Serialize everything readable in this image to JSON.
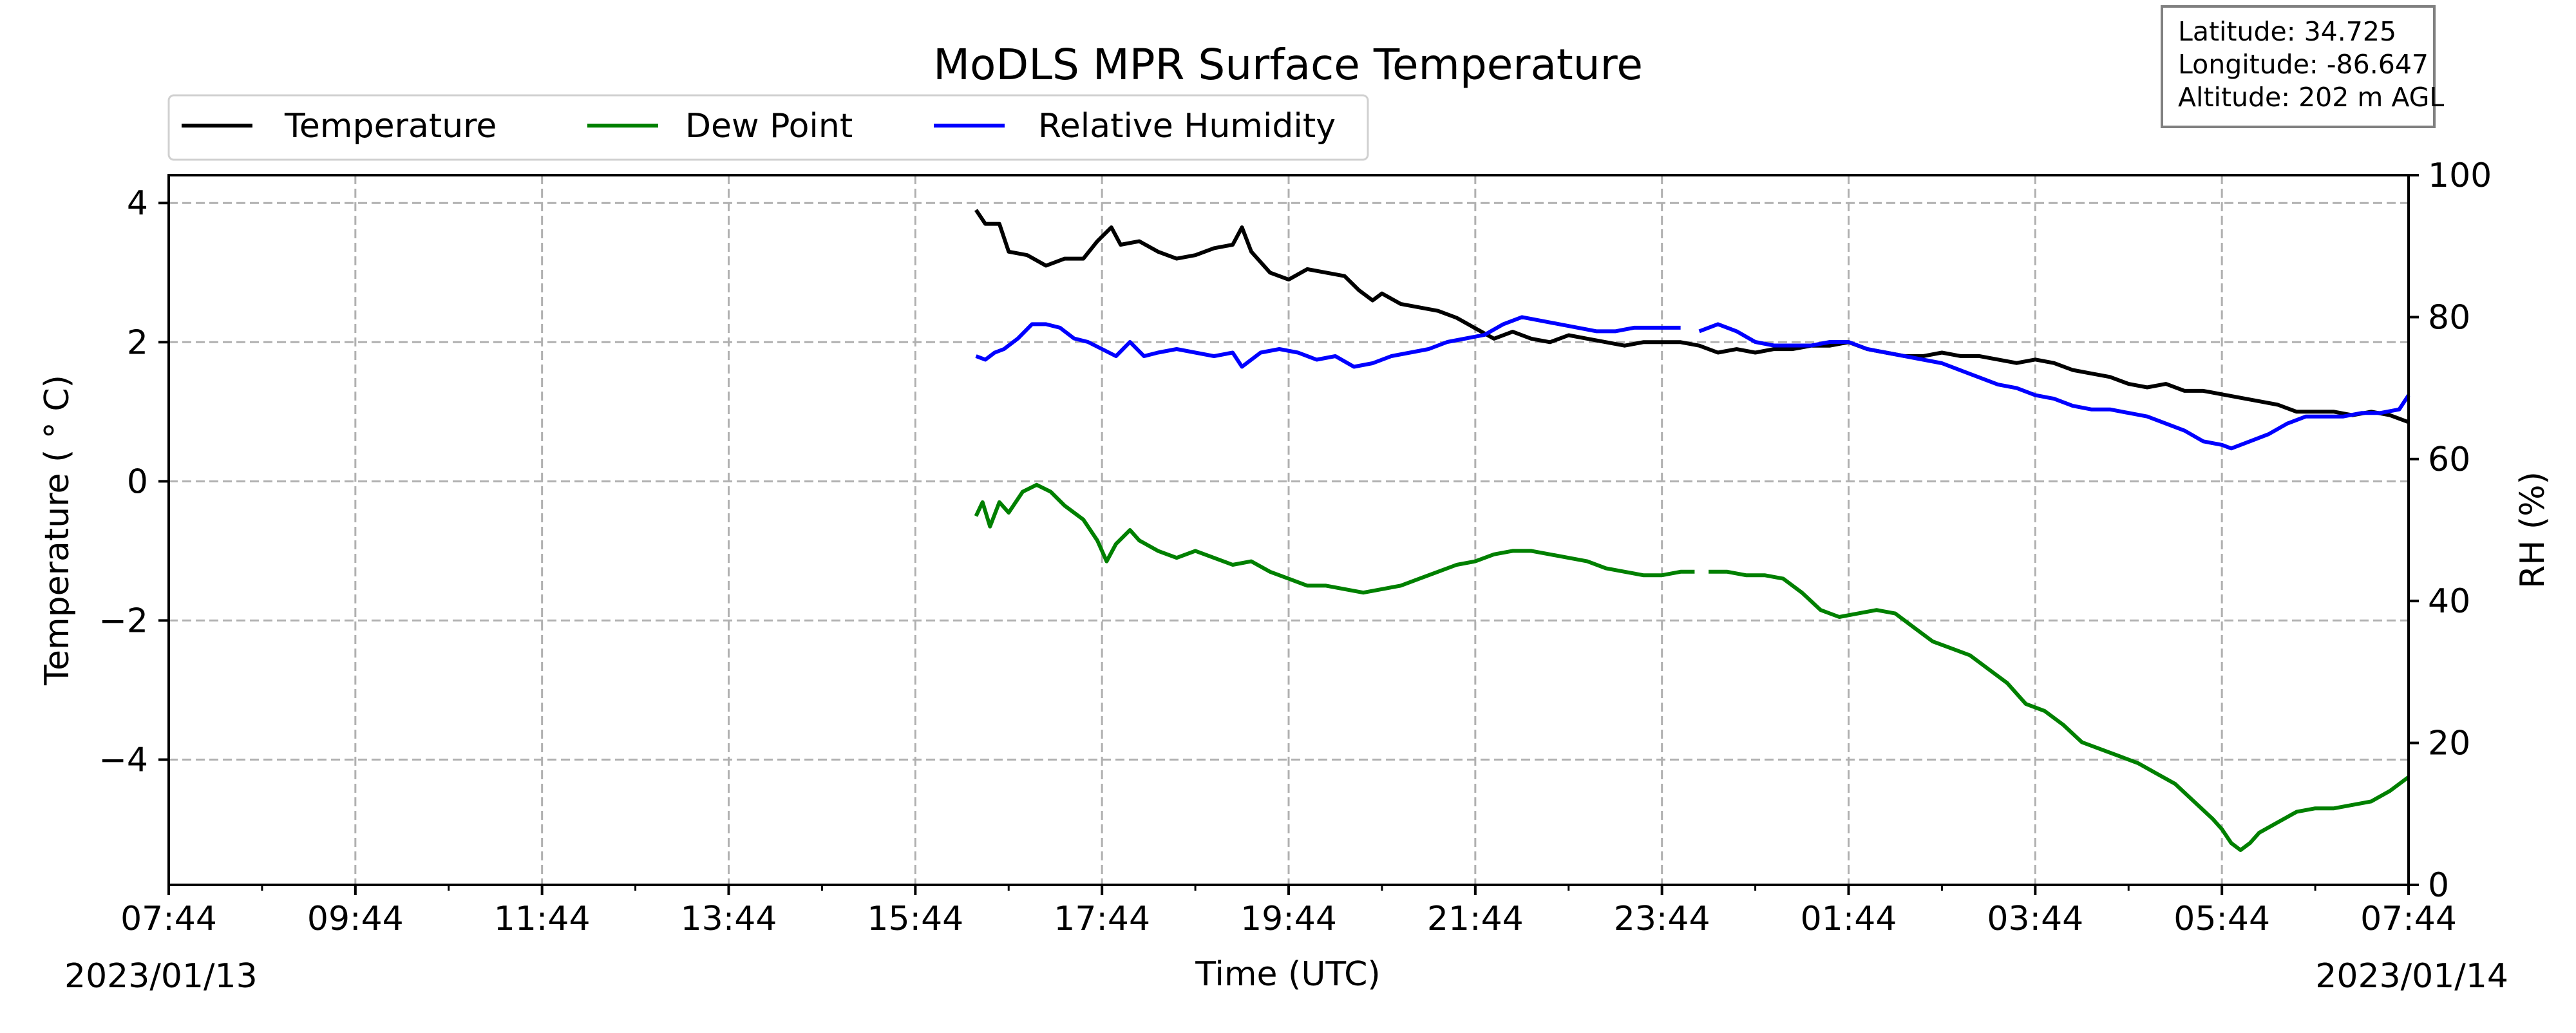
{
  "chart_data": {
    "type": "line",
    "title": "MoDLS MPR Surface Temperature",
    "xlabel": "Time (UTC)",
    "ylabel_left": "Temperature ($^\\circ$C)",
    "ylabel_left_display": "Temperature ( ° C)",
    "ylabel_right": "RH (%)",
    "x_ticks": [
      "07:44",
      "09:44",
      "11:44",
      "13:44",
      "15:44",
      "17:44",
      "19:44",
      "21:44",
      "23:44",
      "01:44",
      "03:44",
      "05:44",
      "07:44"
    ],
    "x_tick_hours": [
      0,
      2,
      4,
      6,
      8,
      10,
      12,
      14,
      16,
      18,
      20,
      22,
      24
    ],
    "date_start": "2023/01/13",
    "date_end": "2023/01/14",
    "xlim_hours_since_start": [
      0,
      24
    ],
    "ylim_left": [
      -5.8,
      4.4
    ],
    "yticks_left": [
      "4",
      "2",
      "0",
      "−2",
      "−4"
    ],
    "ytick_values_left": [
      4,
      2,
      0,
      -2,
      -4
    ],
    "ylim_right": [
      0,
      100
    ],
    "yticks_right": [
      "100",
      "80",
      "60",
      "40",
      "20",
      "0"
    ],
    "ytick_values_right": [
      100,
      80,
      60,
      40,
      20,
      0
    ],
    "grid": true,
    "legend_position": "top-left, above axes",
    "info_box": {
      "latitude": "Latitude: 34.725",
      "longitude": "Longitude: -86.647",
      "altitude": "Altitude: 202 m AGL"
    },
    "series": [
      {
        "name": "Temperature",
        "color": "#000000",
        "axis": "left",
        "points": [
          [
            8.65,
            3.9
          ],
          [
            8.75,
            3.7
          ],
          [
            8.9,
            3.7
          ],
          [
            9.0,
            3.3
          ],
          [
            9.2,
            3.25
          ],
          [
            9.4,
            3.1
          ],
          [
            9.6,
            3.2
          ],
          [
            9.8,
            3.2
          ],
          [
            9.95,
            3.45
          ],
          [
            10.1,
            3.65
          ],
          [
            10.2,
            3.4
          ],
          [
            10.4,
            3.45
          ],
          [
            10.6,
            3.3
          ],
          [
            10.8,
            3.2
          ],
          [
            11.0,
            3.25
          ],
          [
            11.2,
            3.35
          ],
          [
            11.4,
            3.4
          ],
          [
            11.5,
            3.65
          ],
          [
            11.6,
            3.3
          ],
          [
            11.8,
            3.0
          ],
          [
            12.0,
            2.9
          ],
          [
            12.2,
            3.05
          ],
          [
            12.4,
            3.0
          ],
          [
            12.6,
            2.95
          ],
          [
            12.75,
            2.75
          ],
          [
            12.9,
            2.6
          ],
          [
            13.0,
            2.7
          ],
          [
            13.2,
            2.55
          ],
          [
            13.4,
            2.5
          ],
          [
            13.6,
            2.45
          ],
          [
            13.8,
            2.35
          ],
          [
            14.0,
            2.2
          ],
          [
            14.2,
            2.05
          ],
          [
            14.4,
            2.15
          ],
          [
            14.6,
            2.05
          ],
          [
            14.8,
            2.0
          ],
          [
            15.0,
            2.1
          ],
          [
            15.2,
            2.05
          ],
          [
            15.4,
            2.0
          ],
          [
            15.6,
            1.95
          ],
          [
            15.8,
            2.0
          ],
          [
            16.0,
            2.0
          ],
          [
            16.2,
            2.0
          ],
          [
            16.4,
            1.95
          ],
          [
            16.6,
            1.85
          ],
          [
            16.8,
            1.9
          ],
          [
            17.0,
            1.85
          ],
          [
            17.2,
            1.9
          ],
          [
            17.4,
            1.9
          ],
          [
            17.6,
            1.95
          ],
          [
            17.8,
            1.95
          ],
          [
            18.0,
            2.0
          ],
          [
            18.2,
            1.9
          ],
          [
            18.4,
            1.85
          ],
          [
            18.6,
            1.8
          ],
          [
            18.8,
            1.8
          ],
          [
            19.0,
            1.85
          ],
          [
            19.2,
            1.8
          ],
          [
            19.4,
            1.8
          ],
          [
            19.6,
            1.75
          ],
          [
            19.8,
            1.7
          ],
          [
            20.0,
            1.75
          ],
          [
            20.2,
            1.7
          ],
          [
            20.4,
            1.6
          ],
          [
            20.6,
            1.55
          ],
          [
            20.8,
            1.5
          ],
          [
            21.0,
            1.4
          ],
          [
            21.2,
            1.35
          ],
          [
            21.4,
            1.4
          ],
          [
            21.6,
            1.3
          ],
          [
            21.8,
            1.3
          ],
          [
            22.0,
            1.25
          ],
          [
            22.2,
            1.2
          ],
          [
            22.4,
            1.15
          ],
          [
            22.6,
            1.1
          ],
          [
            22.8,
            1.0
          ],
          [
            23.0,
            1.0
          ],
          [
            23.2,
            1.0
          ],
          [
            23.4,
            0.95
          ],
          [
            23.6,
            1.0
          ],
          [
            23.8,
            0.95
          ],
          [
            24.0,
            0.85
          ]
        ]
      },
      {
        "name": "Dew Point",
        "color": "#008000",
        "axis": "left",
        "points": [
          [
            8.65,
            -0.5
          ],
          [
            8.72,
            -0.3
          ],
          [
            8.8,
            -0.65
          ],
          [
            8.9,
            -0.3
          ],
          [
            9.0,
            -0.45
          ],
          [
            9.15,
            -0.15
          ],
          [
            9.3,
            -0.05
          ],
          [
            9.45,
            -0.15
          ],
          [
            9.6,
            -0.35
          ],
          [
            9.8,
            -0.55
          ],
          [
            9.95,
            -0.85
          ],
          [
            10.05,
            -1.15
          ],
          [
            10.15,
            -0.9
          ],
          [
            10.3,
            -0.7
          ],
          [
            10.4,
            -0.85
          ],
          [
            10.6,
            -1.0
          ],
          [
            10.8,
            -1.1
          ],
          [
            11.0,
            -1.0
          ],
          [
            11.2,
            -1.1
          ],
          [
            11.4,
            -1.2
          ],
          [
            11.6,
            -1.15
          ],
          [
            11.8,
            -1.3
          ],
          [
            12.0,
            -1.4
          ],
          [
            12.2,
            -1.5
          ],
          [
            12.4,
            -1.5
          ],
          [
            12.6,
            -1.55
          ],
          [
            12.8,
            -1.6
          ],
          [
            13.0,
            -1.55
          ],
          [
            13.2,
            -1.5
          ],
          [
            13.4,
            -1.4
          ],
          [
            13.6,
            -1.3
          ],
          [
            13.8,
            -1.2
          ],
          [
            14.0,
            -1.15
          ],
          [
            14.2,
            -1.05
          ],
          [
            14.4,
            -1.0
          ],
          [
            14.6,
            -1.0
          ],
          [
            14.8,
            -1.05
          ],
          [
            15.0,
            -1.1
          ],
          [
            15.2,
            -1.15
          ],
          [
            15.4,
            -1.25
          ],
          [
            15.6,
            -1.3
          ],
          [
            15.8,
            -1.35
          ],
          [
            16.0,
            -1.35
          ],
          [
            16.2,
            -1.3
          ],
          [
            16.35,
            -1.3
          ],
          [
            16.35,
            null
          ],
          [
            16.5,
            -1.3
          ],
          [
            16.7,
            -1.3
          ],
          [
            16.9,
            -1.35
          ],
          [
            17.1,
            -1.35
          ],
          [
            17.3,
            -1.4
          ],
          [
            17.5,
            -1.6
          ],
          [
            17.7,
            -1.85
          ],
          [
            17.9,
            -1.95
          ],
          [
            18.1,
            -1.9
          ],
          [
            18.3,
            -1.85
          ],
          [
            18.5,
            -1.9
          ],
          [
            18.7,
            -2.1
          ],
          [
            18.9,
            -2.3
          ],
          [
            19.1,
            -2.4
          ],
          [
            19.3,
            -2.5
          ],
          [
            19.5,
            -2.7
          ],
          [
            19.7,
            -2.9
          ],
          [
            19.9,
            -3.2
          ],
          [
            20.1,
            -3.3
          ],
          [
            20.3,
            -3.5
          ],
          [
            20.5,
            -3.75
          ],
          [
            20.7,
            -3.85
          ],
          [
            20.9,
            -3.95
          ],
          [
            21.1,
            -4.05
          ],
          [
            21.3,
            -4.2
          ],
          [
            21.5,
            -4.35
          ],
          [
            21.7,
            -4.6
          ],
          [
            21.9,
            -4.85
          ],
          [
            22.0,
            -5.0
          ],
          [
            22.1,
            -5.2
          ],
          [
            22.2,
            -5.3
          ],
          [
            22.3,
            -5.2
          ],
          [
            22.4,
            -5.05
          ],
          [
            22.6,
            -4.9
          ],
          [
            22.8,
            -4.75
          ],
          [
            23.0,
            -4.7
          ],
          [
            23.2,
            -4.7
          ],
          [
            23.4,
            -4.65
          ],
          [
            23.6,
            -4.6
          ],
          [
            23.8,
            -4.45
          ],
          [
            24.0,
            -4.25
          ]
        ]
      },
      {
        "name": "Relative Humidity",
        "color": "#0000ff",
        "axis": "right",
        "points": [
          [
            8.65,
            74.5
          ],
          [
            8.75,
            74.0
          ],
          [
            8.85,
            75.0
          ],
          [
            8.95,
            75.5
          ],
          [
            9.1,
            77.0
          ],
          [
            9.25,
            79.0
          ],
          [
            9.4,
            79.0
          ],
          [
            9.55,
            78.5
          ],
          [
            9.7,
            77.0
          ],
          [
            9.85,
            76.5
          ],
          [
            10.0,
            75.5
          ],
          [
            10.15,
            74.5
          ],
          [
            10.3,
            76.5
          ],
          [
            10.45,
            74.5
          ],
          [
            10.6,
            75.0
          ],
          [
            10.8,
            75.5
          ],
          [
            11.0,
            75.0
          ],
          [
            11.2,
            74.5
          ],
          [
            11.4,
            75.0
          ],
          [
            11.5,
            73.0
          ],
          [
            11.7,
            75.0
          ],
          [
            11.9,
            75.5
          ],
          [
            12.1,
            75.0
          ],
          [
            12.3,
            74.0
          ],
          [
            12.5,
            74.5
          ],
          [
            12.7,
            73.0
          ],
          [
            12.9,
            73.5
          ],
          [
            13.1,
            74.5
          ],
          [
            13.3,
            75.0
          ],
          [
            13.5,
            75.5
          ],
          [
            13.7,
            76.5
          ],
          [
            13.9,
            77.0
          ],
          [
            14.1,
            77.5
          ],
          [
            14.3,
            79.0
          ],
          [
            14.5,
            80.0
          ],
          [
            14.7,
            79.5
          ],
          [
            14.9,
            79.0
          ],
          [
            15.1,
            78.5
          ],
          [
            15.3,
            78.0
          ],
          [
            15.5,
            78.0
          ],
          [
            15.7,
            78.5
          ],
          [
            15.9,
            78.5
          ],
          [
            16.1,
            78.5
          ],
          [
            16.2,
            78.5
          ],
          [
            16.2,
            null
          ],
          [
            16.4,
            78.0
          ],
          [
            16.6,
            79.0
          ],
          [
            16.8,
            78.0
          ],
          [
            17.0,
            76.5
          ],
          [
            17.2,
            76.0
          ],
          [
            17.4,
            76.0
          ],
          [
            17.6,
            76.0
          ],
          [
            17.8,
            76.5
          ],
          [
            18.0,
            76.5
          ],
          [
            18.2,
            75.5
          ],
          [
            18.4,
            75.0
          ],
          [
            18.6,
            74.5
          ],
          [
            18.8,
            74.0
          ],
          [
            19.0,
            73.5
          ],
          [
            19.2,
            72.5
          ],
          [
            19.4,
            71.5
          ],
          [
            19.6,
            70.5
          ],
          [
            19.8,
            70.0
          ],
          [
            20.0,
            69.0
          ],
          [
            20.2,
            68.5
          ],
          [
            20.4,
            67.5
          ],
          [
            20.6,
            67.0
          ],
          [
            20.8,
            67.0
          ],
          [
            21.0,
            66.5
          ],
          [
            21.2,
            66.0
          ],
          [
            21.4,
            65.0
          ],
          [
            21.6,
            64.0
          ],
          [
            21.8,
            62.5
          ],
          [
            22.0,
            62.0
          ],
          [
            22.1,
            61.5
          ],
          [
            22.3,
            62.5
          ],
          [
            22.5,
            63.5
          ],
          [
            22.7,
            65.0
          ],
          [
            22.9,
            66.0
          ],
          [
            23.1,
            66.0
          ],
          [
            23.3,
            66.0
          ],
          [
            23.5,
            66.5
          ],
          [
            23.7,
            66.5
          ],
          [
            23.9,
            67.0
          ],
          [
            24.0,
            69.0
          ]
        ]
      }
    ]
  }
}
